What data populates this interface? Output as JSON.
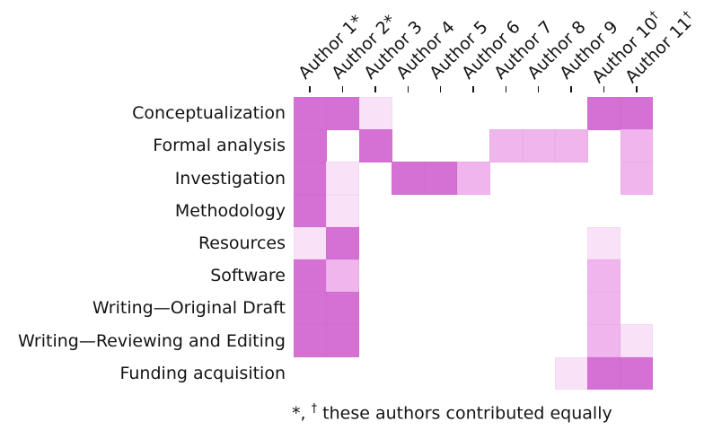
{
  "figure": {
    "background": "#ffffff",
    "footnote": {
      "star": "*",
      "comma": ", ",
      "dagger": "†",
      "text": " these authors contributed equally"
    }
  },
  "chart_data": {
    "type": "heatmap",
    "title": "",
    "xlabel": "",
    "ylabel": "",
    "legend": "none",
    "grid": "off",
    "columns": [
      {
        "label": "Author 1",
        "mark": "*",
        "mark_superscript": false
      },
      {
        "label": "Author 2",
        "mark": "*",
        "mark_superscript": false
      },
      {
        "label": "Author 3",
        "mark": "",
        "mark_superscript": false
      },
      {
        "label": "Author 4",
        "mark": "",
        "mark_superscript": false
      },
      {
        "label": "Author 5",
        "mark": "",
        "mark_superscript": false
      },
      {
        "label": "Author 6",
        "mark": "",
        "mark_superscript": false
      },
      {
        "label": "Author 7",
        "mark": "",
        "mark_superscript": false
      },
      {
        "label": "Author 8",
        "mark": "",
        "mark_superscript": false
      },
      {
        "label": "Author 9",
        "mark": "",
        "mark_superscript": false
      },
      {
        "label": "Author 10",
        "mark": "†",
        "mark_superscript": true
      },
      {
        "label": "Author 11",
        "mark": "†",
        "mark_superscript": true
      }
    ],
    "rows": [
      "Conceptualization",
      "Formal analysis",
      "Investigation",
      "Methodology",
      "Resources",
      "Software",
      "Writing—Original Draft",
      "Writing—Reviewing and Editing",
      "Funding acquisition"
    ],
    "values": [
      [
        3,
        3,
        1,
        0,
        0,
        0,
        0,
        0,
        0,
        3,
        3
      ],
      [
        3,
        0,
        3,
        0,
        0,
        0,
        2,
        2,
        2,
        0,
        2
      ],
      [
        3,
        1,
        0,
        3,
        3,
        2,
        0,
        0,
        0,
        0,
        2
      ],
      [
        3,
        1,
        0,
        0,
        0,
        0,
        0,
        0,
        0,
        0,
        0
      ],
      [
        1,
        3,
        0,
        0,
        0,
        0,
        0,
        0,
        0,
        1,
        0
      ],
      [
        3,
        2,
        0,
        0,
        0,
        0,
        0,
        0,
        0,
        2,
        0
      ],
      [
        3,
        3,
        0,
        0,
        0,
        0,
        0,
        0,
        0,
        2,
        0
      ],
      [
        3,
        3,
        0,
        0,
        0,
        0,
        0,
        0,
        0,
        2,
        1
      ],
      [
        0,
        0,
        0,
        0,
        0,
        0,
        0,
        0,
        1,
        3,
        3
      ]
    ],
    "value_levels": {
      "0": "none",
      "1": "light",
      "2": "medium",
      "3": "dark"
    },
    "colors": [
      "#ffffff",
      "#f9e2f8",
      "#efb5ec",
      "#d570d4"
    ],
    "tick_color": "#141414"
  }
}
